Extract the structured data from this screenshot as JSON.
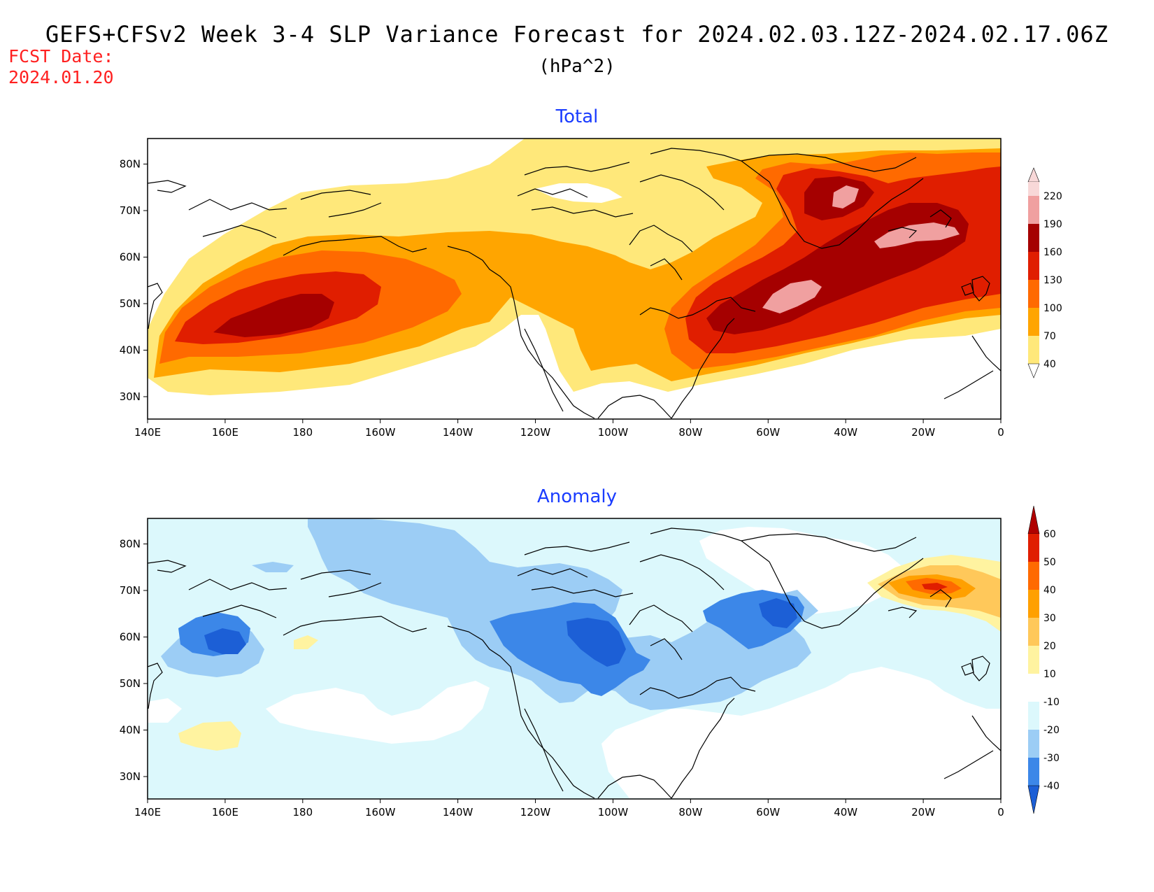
{
  "header": {
    "title": "GEFS+CFSv2 Week 3-4 SLP Variance Forecast for 2024.02.03.12Z-2024.02.17.06Z",
    "units": "(hPa^2)",
    "fcst_date_label": "FCST Date:",
    "fcst_date_value": "2024.01.20"
  },
  "axes": {
    "lon_ticks": [
      "140E",
      "160E",
      "180",
      "160W",
      "140W",
      "120W",
      "100W",
      "80W",
      "60W",
      "40W",
      "20W",
      "0"
    ],
    "lat_ticks": [
      "30N",
      "40N",
      "50N",
      "60N",
      "70N",
      "80N"
    ]
  },
  "panels": [
    {
      "title": "Total",
      "colorbar": {
        "levels": [
          "40",
          "70",
          "100",
          "130",
          "160",
          "190",
          "220"
        ],
        "colors": [
          "#ffe87a",
          "#ffa500",
          "#ff6a00",
          "#e01e00",
          "#a50000",
          "#f0a0a0",
          "#f8d8d8"
        ]
      }
    },
    {
      "title": "Anomaly",
      "colorbar": {
        "levels": [
          "-40",
          "-30",
          "-20",
          "-10",
          "10",
          "20",
          "30",
          "40",
          "50",
          "60"
        ],
        "colors": [
          "#1c5fd6",
          "#3c87e8",
          "#9ccdf5",
          "#dcf8fc",
          "#ffffff",
          "#fff3a0",
          "#ffc85a",
          "#ffa000",
          "#ff6a00",
          "#e01e00",
          "#b00000"
        ]
      }
    }
  ]
}
